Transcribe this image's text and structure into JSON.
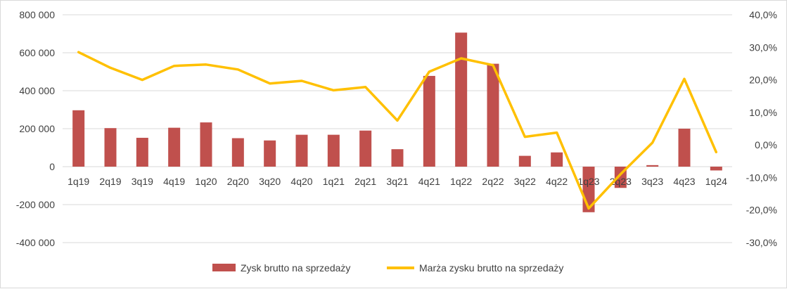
{
  "chart_data": {
    "type": "bar",
    "categories": [
      "1q19",
      "2q19",
      "3q19",
      "4q19",
      "1q20",
      "2q20",
      "3q20",
      "4q20",
      "1q21",
      "2q21",
      "3q21",
      "4q21",
      "1q22",
      "2q22",
      "3q22",
      "4q22",
      "1q23",
      "2q23",
      "3q23",
      "4q23",
      "1q24"
    ],
    "series": [
      {
        "name": "Zysk brutto na sprzedaży",
        "type": "bar",
        "axis": "left",
        "color": "#c0504d",
        "values": [
          297000,
          203000,
          152000,
          205000,
          233000,
          150000,
          138000,
          168000,
          168000,
          190000,
          92000,
          478000,
          706000,
          542000,
          57000,
          75000,
          -240000,
          -112000,
          8000,
          200000,
          -20000
        ]
      },
      {
        "name": "Marża zysku brutto na sprzedaży",
        "type": "line",
        "axis": "right",
        "color": "#ffc000",
        "values": [
          28.5,
          23.7,
          20.0,
          24.3,
          24.7,
          23.2,
          18.9,
          19.7,
          16.8,
          17.8,
          7.5,
          22.5,
          26.6,
          24.5,
          2.5,
          3.8,
          -19.5,
          -9.0,
          0.7,
          20.3,
          -2.2
        ]
      }
    ],
    "y_left": {
      "ylim": [
        -400000,
        800000
      ],
      "ticks": [
        -400000,
        -200000,
        0,
        200000,
        400000,
        600000,
        800000
      ],
      "tick_labels": [
        "-400 000",
        "-200 000",
        "0",
        "200 000",
        "400 000",
        "600 000",
        "800 000"
      ]
    },
    "y_right": {
      "ylim": [
        -30,
        40
      ],
      "ticks": [
        -30,
        -20,
        -10,
        0,
        10,
        20,
        30,
        40
      ],
      "tick_labels": [
        "-30,0%",
        "-20,0%",
        "-10,0%",
        "0,0%",
        "10,0%",
        "20,0%",
        "30,0%",
        "40,0%"
      ]
    },
    "grid": true,
    "legend": "bottom"
  }
}
